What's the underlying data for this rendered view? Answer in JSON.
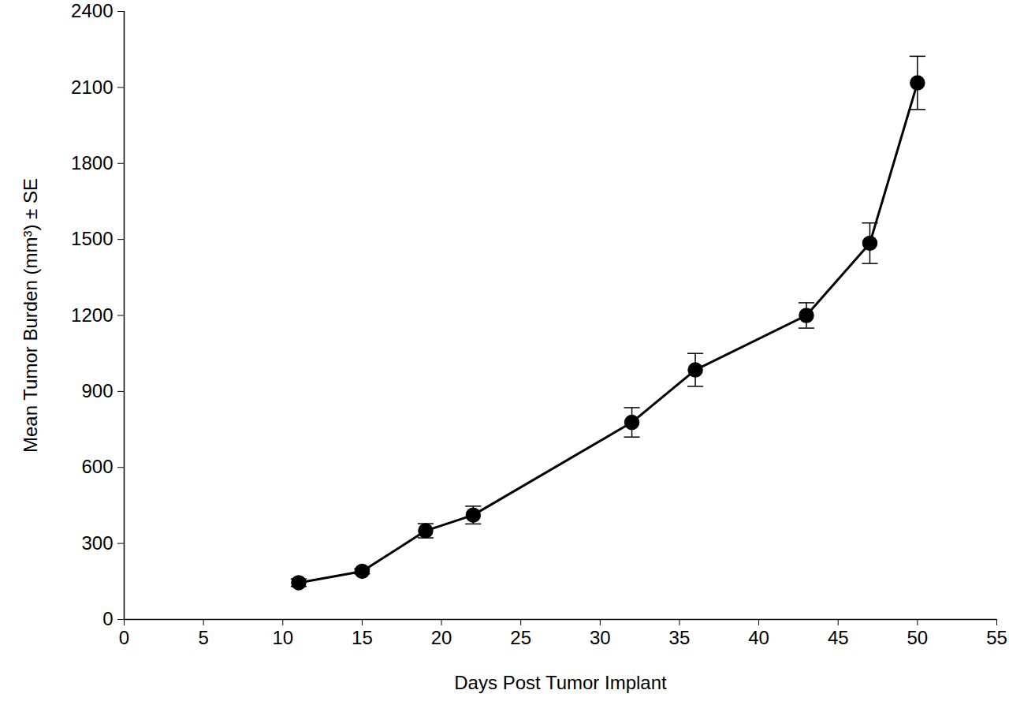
{
  "chart_data": {
    "type": "line",
    "x_label": "Days Post Tumor Implant",
    "y_label": "Mean Tumor Burden (mm³) ± SE",
    "x": [
      11,
      15,
      19,
      22,
      32,
      36,
      43,
      47,
      50
    ],
    "values": [
      145,
      190,
      350,
      412,
      778,
      985,
      1200,
      1485,
      2118
    ],
    "errors": [
      15,
      10,
      28,
      35,
      58,
      65,
      50,
      80,
      105
    ],
    "color": "#000000",
    "marker": "circle",
    "xlim": [
      0,
      55
    ],
    "xticks": [
      0,
      5,
      10,
      15,
      20,
      25,
      30,
      35,
      40,
      45,
      50,
      55
    ],
    "ylim": [
      0,
      2400
    ],
    "yticks": [
      0,
      300,
      600,
      900,
      1200,
      1500,
      1800,
      2100,
      2400
    ],
    "grid": false
  }
}
